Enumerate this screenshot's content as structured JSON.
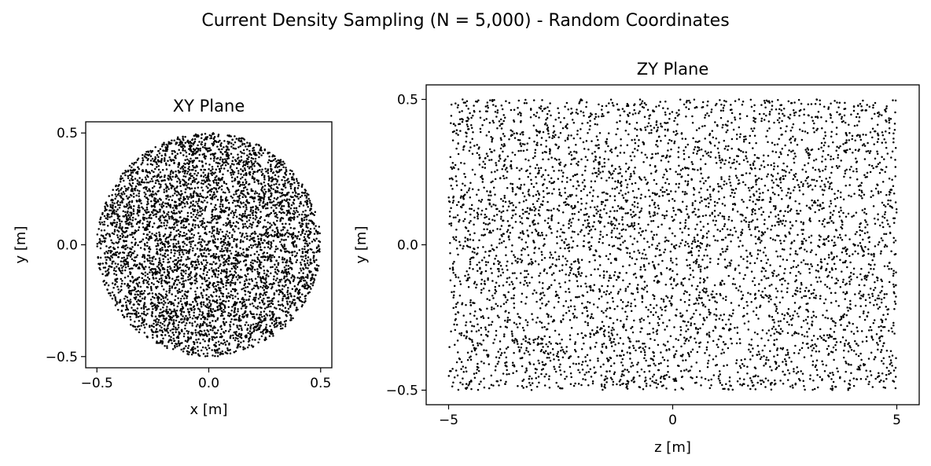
{
  "figure": {
    "title": "Current Density Sampling (N = 5,000) - Random Coordinates"
  },
  "chart_data": [
    {
      "type": "scatter",
      "title": "XY Plane",
      "xlabel": "x [m]",
      "ylabel": "y [m]",
      "xlim": [
        -0.55,
        0.55
      ],
      "ylim": [
        -0.55,
        0.55
      ],
      "xticks": [
        -0.5,
        0.0,
        0.5
      ],
      "xtick_labels": [
        "−0.5",
        "0.0",
        "0.5"
      ],
      "yticks": [
        -0.5,
        0.0,
        0.5
      ],
      "ytick_labels": [
        "−0.5",
        "0.0",
        "0.5"
      ],
      "grid": false,
      "marker_color": "#000000",
      "n_points": 5000,
      "distribution": {
        "shape": "disk",
        "center": [
          0,
          0
        ],
        "radius": 0.5
      }
    },
    {
      "type": "scatter",
      "title": "ZY Plane",
      "xlabel": "z [m]",
      "ylabel": "y [m]",
      "xlim": [
        -5.5,
        5.5
      ],
      "ylim": [
        -0.55,
        0.55
      ],
      "xticks": [
        -5,
        0,
        5
      ],
      "xtick_labels": [
        "−5",
        "0",
        "5"
      ],
      "yticks": [
        -0.5,
        0.0,
        0.5
      ],
      "ytick_labels": [
        "−0.5",
        "0.0",
        "0.5"
      ],
      "grid": false,
      "marker_color": "#000000",
      "n_points": 5000,
      "distribution": {
        "shape": "uniform",
        "z_range": [
          -5,
          5
        ],
        "y_range": [
          -0.5,
          0.5
        ]
      }
    }
  ]
}
